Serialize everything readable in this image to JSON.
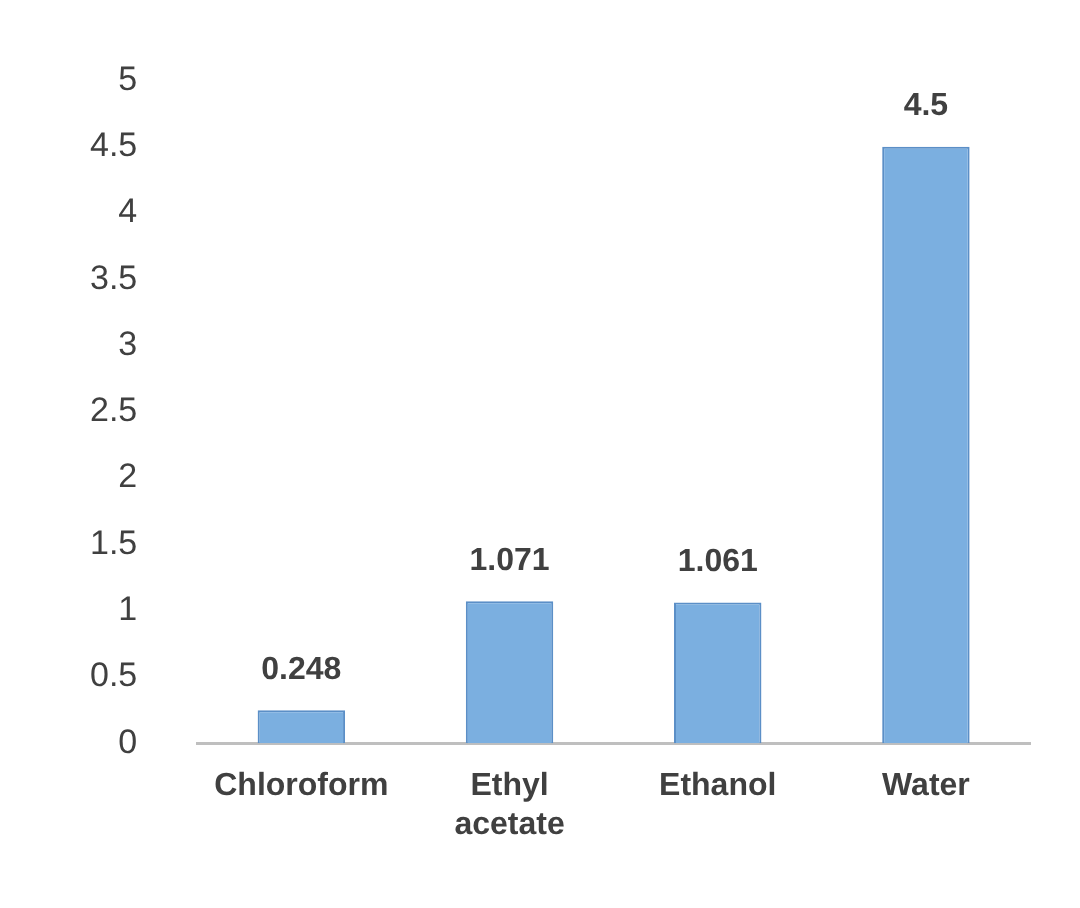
{
  "chart_data": {
    "type": "bar",
    "categories": [
      "Chloroform",
      "Ethyl acetate",
      "Ethanol",
      "Water"
    ],
    "values": [
      0.248,
      1.071,
      1.061,
      4.5
    ],
    "color": "#7bafe0",
    "ylim": [
      0,
      5
    ],
    "yticks": [
      0,
      0.5,
      1,
      1.5,
      2,
      2.5,
      3,
      3.5,
      4,
      4.5,
      5
    ],
    "grid": false,
    "data_labels": true
  }
}
